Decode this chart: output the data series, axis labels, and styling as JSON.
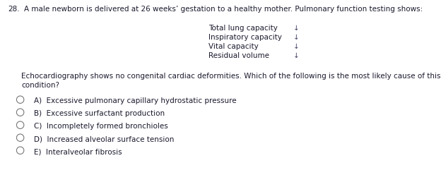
{
  "question_number": "28.",
  "question_text": "A male newborn is delivered at 26 weeks’ gestation to a healthy mother. Pulmonary function testing shows:",
  "pft_labels": [
    "Total lung capacity",
    "Inspiratory capacity",
    "Vital capacity",
    "Residual volume"
  ],
  "pft_arrows": [
    "↓",
    "↓",
    "↓",
    "↓"
  ],
  "echo_line1": "Echocardiography shows no congenital cardiac deformities. Which of the following is the most likely cause of this newborn’s",
  "echo_line2": "condition?",
  "choices": [
    "A)  Excessive pulmonary capillary hydrostatic pressure",
    "B)  Excessive surfactant production",
    "C)  Incompletely formed bronchioles",
    "D)  Increased alveolar surface tension",
    "E)  Interalveolar fibrosis"
  ],
  "bg_color": "#ffffff",
  "text_color": "#1a1a2e",
  "font_size": 7.5,
  "fig_width": 6.24,
  "fig_height": 2.58,
  "dpi": 100
}
